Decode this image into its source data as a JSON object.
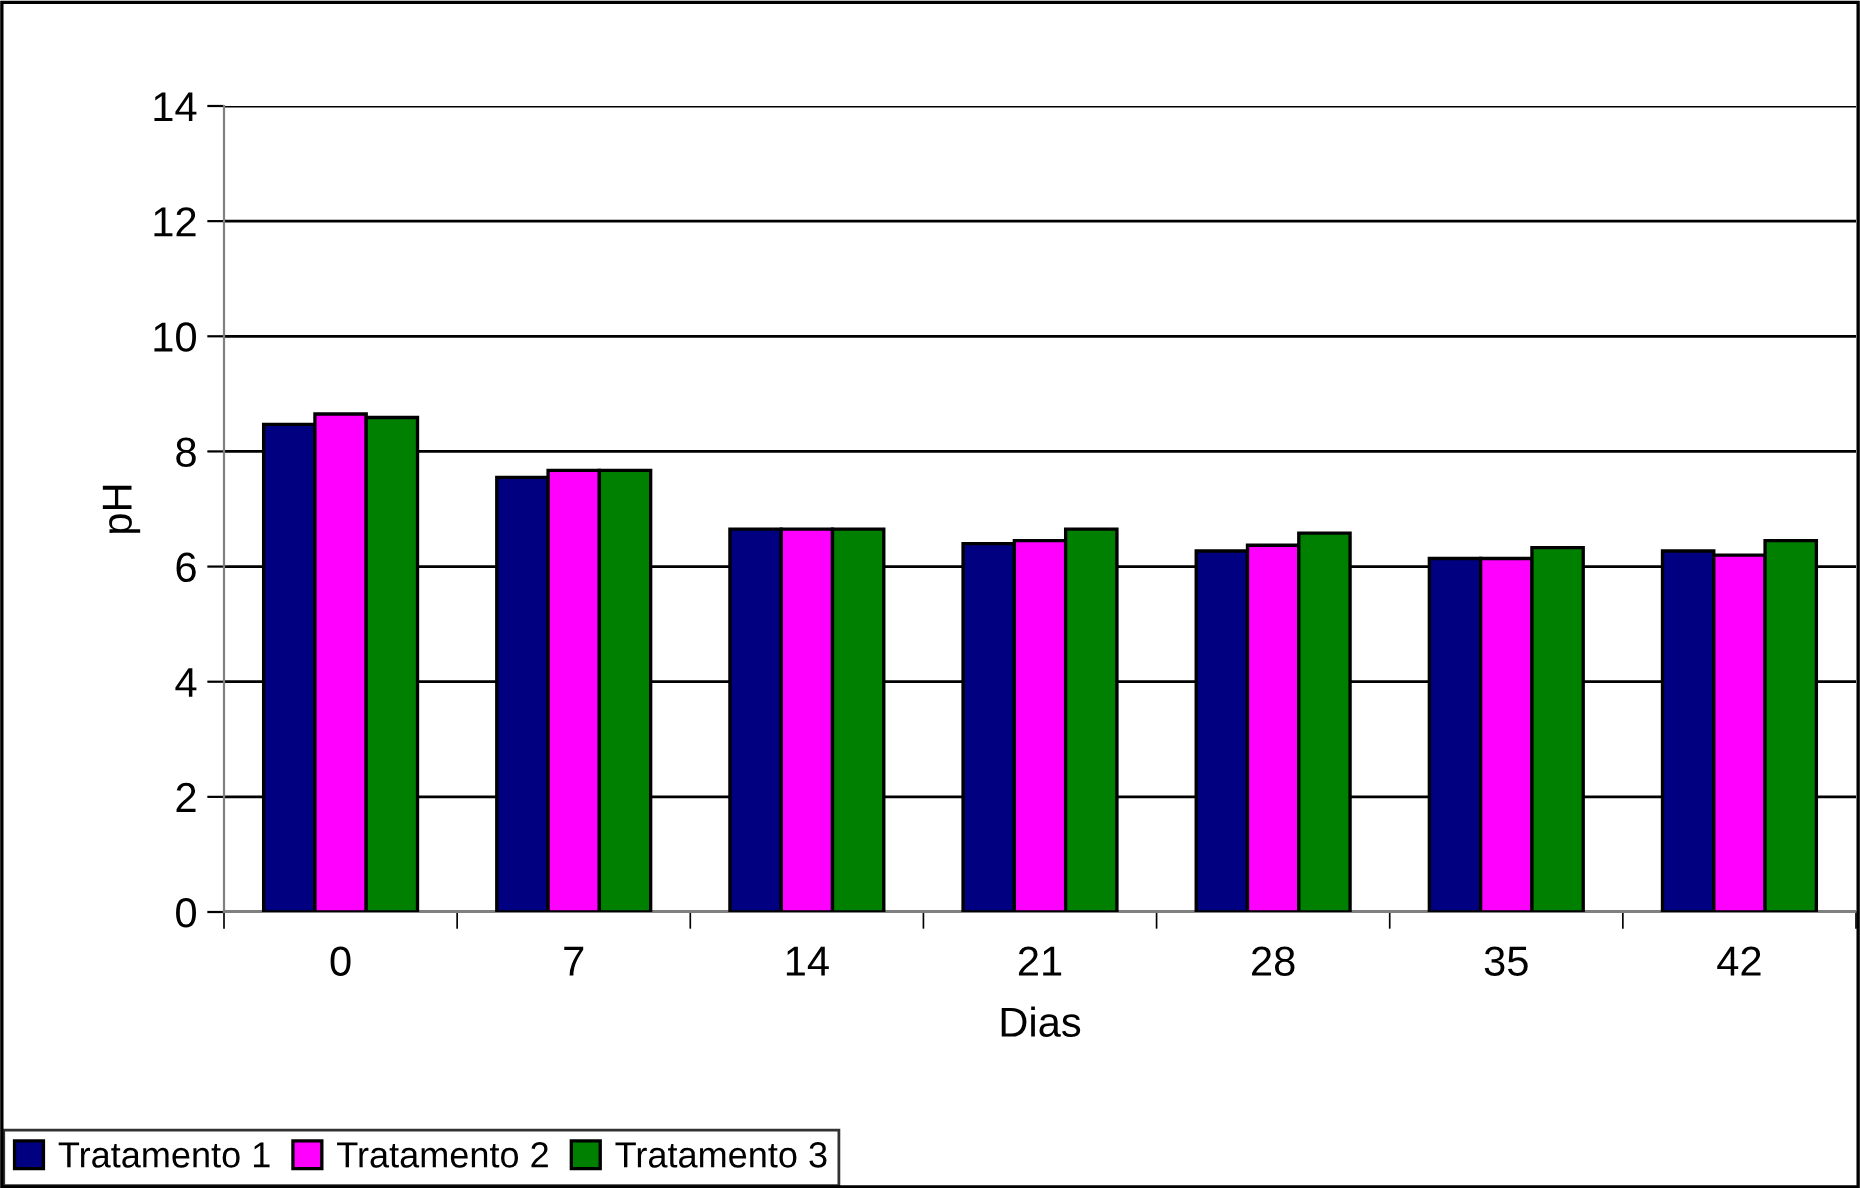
{
  "chart_data": {
    "type": "bar",
    "xlabel": "Dias",
    "ylabel": "pH",
    "categories": [
      "0",
      "7",
      "14",
      "21",
      "28",
      "35",
      "42"
    ],
    "series": [
      {
        "name": "Tratamento 1",
        "color": "#000080",
        "values": [
          8.47,
          7.55,
          6.65,
          6.4,
          6.27,
          6.14,
          6.27
        ]
      },
      {
        "name": "Tratamento 2",
        "color": "#ff00ff",
        "values": [
          8.65,
          7.67,
          6.65,
          6.45,
          6.37,
          6.14,
          6.2
        ]
      },
      {
        "name": "Tratamento 3",
        "color": "#008000",
        "values": [
          8.59,
          7.67,
          6.65,
          6.65,
          6.58,
          6.33,
          6.45
        ]
      }
    ],
    "ylim": [
      0,
      14
    ],
    "yticks": [
      0,
      2,
      4,
      6,
      8,
      10,
      12,
      14
    ],
    "grid": "y",
    "legend": "bottom left"
  }
}
